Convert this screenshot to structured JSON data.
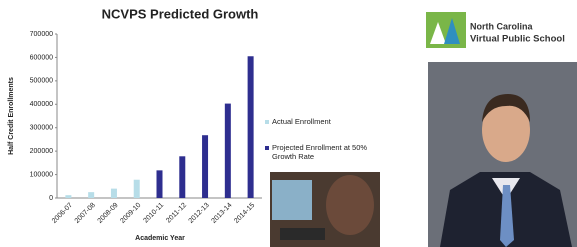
{
  "chart_data": {
    "type": "bar",
    "title": "NCVPS Predicted Growth",
    "x_label": "Academic Year",
    "y_label": "Half Credit Enrollments",
    "categories": [
      "2006-07",
      "2007-08",
      "2008-09",
      "2009-10",
      "2010-11",
      "2011-12",
      "2012-13",
      "2013-14",
      "2014-15"
    ],
    "series": [
      {
        "name": "Actual Enrollment",
        "color": "#b7dde8",
        "values": [
          12000,
          25000,
          40000,
          78000,
          null,
          null,
          null,
          null,
          null
        ]
      },
      {
        "name": "Projected Enrollment at 50% Growth Rate",
        "color": "#2e2e8f",
        "values": [
          null,
          null,
          null,
          null,
          118000,
          178000,
          268000,
          403000,
          605000
        ]
      }
    ],
    "ylim": [
      0,
      700000
    ],
    "yticks": [
      0,
      100000,
      200000,
      300000,
      400000,
      500000,
      600000,
      700000
    ],
    "grid": false,
    "legend": "right"
  },
  "logo": {
    "line1": "North Carolina",
    "line2": "Virtual Public School"
  }
}
